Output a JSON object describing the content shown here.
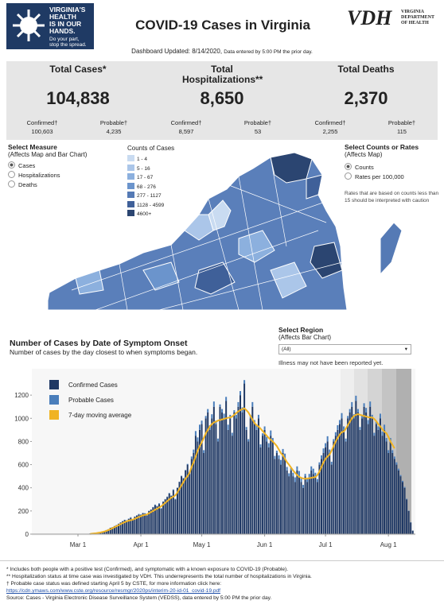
{
  "header": {
    "logo_title": [
      "VIRGINIA'S",
      "HEALTH",
      "IS IN OUR",
      "HANDS."
    ],
    "logo_tagline": [
      "Do your part,",
      "stop the spread."
    ],
    "title": "COVID-19 Cases in Virginia",
    "agency_short": "VDH",
    "agency_lines": [
      "VIRGINIA",
      "DEPARTMENT",
      "OF HEALTH"
    ]
  },
  "updated": {
    "label": "Dashboard Updated: 8/14/2020,",
    "note": "Data entered by 5:00 PM the prior day."
  },
  "kpis": [
    {
      "title": "Total Cases*",
      "value": "104,838",
      "sub": [
        {
          "label": "Confirmed†",
          "value": "100,603"
        },
        {
          "label": "Probable†",
          "value": "4,235"
        }
      ]
    },
    {
      "title": "Total Hospitalizations**",
      "value": "8,650",
      "sub": [
        {
          "label": "Confirmed†",
          "value": "8,597"
        },
        {
          "label": "Probable†",
          "value": "53"
        }
      ]
    },
    {
      "title": "Total Deaths",
      "value": "2,370",
      "sub": [
        {
          "label": "Confirmed†",
          "value": "2,255"
        },
        {
          "label": "Probable†",
          "value": "115"
        }
      ]
    }
  ],
  "measure": {
    "title": "Select Measure",
    "subtitle": "(Affects Map and Bar Chart)",
    "options": [
      "Cases",
      "Hospitalizations",
      "Deaths"
    ]
  },
  "map_legend": {
    "title": "Counts of Cases",
    "bins": [
      {
        "label": "1 - 4",
        "color": "#c9dbf1"
      },
      {
        "label": "5 - 16",
        "color": "#abc6e9"
      },
      {
        "label": "17 - 67",
        "color": "#8cb0de"
      },
      {
        "label": "68 - 276",
        "color": "#6b94cc"
      },
      {
        "label": "277 - 1127",
        "color": "#557ab5"
      },
      {
        "label": "1128 - 4599",
        "color": "#3f6099"
      },
      {
        "label": "4600+",
        "color": "#2b4571"
      }
    ]
  },
  "counts_rates": {
    "title": "Select Counts or Rates",
    "subtitle": "(Affects Map)",
    "options": [
      "Counts",
      "Rates per 100,000"
    ],
    "note": "Rates that are based on counts less than 15 should be interpreted with caution"
  },
  "region": {
    "title": "Select Region",
    "subtitle": "(Affects Bar Chart)",
    "selected": "(All)",
    "note": "Illness may not have been reported yet."
  },
  "chart_data": {
    "type": "bar",
    "stacked": true,
    "title": "Number of Cases by Date of Symptom Onset",
    "subtitle": "Number of cases by the day closest to when symptoms began.",
    "categories": [
      "Mar 1",
      null,
      null,
      null,
      null,
      null,
      null,
      null,
      null,
      null,
      null,
      null,
      null,
      null,
      null,
      null,
      null,
      null,
      null,
      null,
      null,
      null,
      null,
      null,
      null,
      null,
      null,
      null,
      null,
      null,
      null,
      "Apr 1",
      null,
      null,
      null,
      null,
      null,
      null,
      null,
      null,
      null,
      null,
      null,
      null,
      null,
      null,
      null,
      null,
      null,
      null,
      null,
      null,
      null,
      null,
      null,
      null,
      null,
      null,
      null,
      null,
      null,
      "May 1",
      null,
      null,
      null,
      null,
      null,
      null,
      null,
      null,
      null,
      null,
      null,
      null,
      null,
      null,
      null,
      null,
      null,
      null,
      null,
      null,
      null,
      null,
      null,
      null,
      null,
      null,
      null,
      null,
      null,
      null,
      "Jun 1",
      null,
      null,
      null,
      null,
      null,
      null,
      null,
      null,
      null,
      null,
      null,
      null,
      null,
      null,
      null,
      null,
      null,
      null,
      null,
      null,
      null,
      null,
      null,
      null,
      null,
      null,
      null,
      null,
      null,
      "Jul 1",
      null,
      null,
      null,
      null,
      null,
      null,
      null,
      null,
      null,
      null,
      null,
      null,
      null,
      null,
      null,
      null,
      null,
      null,
      null,
      null,
      null,
      null,
      null,
      null,
      null,
      null,
      null,
      null,
      null,
      null,
      "Aug 1",
      null,
      null,
      null,
      null,
      null,
      null,
      null,
      null,
      null,
      null,
      null,
      null
    ],
    "series": [
      {
        "name": "Confirmed Cases",
        "color": "#1f3864",
        "values": [
          0,
          0,
          1,
          1,
          2,
          3,
          5,
          6,
          8,
          10,
          14,
          18,
          22,
          28,
          35,
          42,
          55,
          60,
          70,
          78,
          90,
          100,
          110,
          120,
          115,
          130,
          140,
          125,
          150,
          160,
          170,
          165,
          180,
          175,
          160,
          200,
          210,
          230,
          250,
          240,
          260,
          220,
          280,
          300,
          320,
          350,
          330,
          380,
          300,
          400,
          450,
          500,
          480,
          550,
          600,
          520,
          650,
          700,
          850,
          800,
          900,
          950,
          700,
          1000,
          1050,
          900,
          1000,
          1100,
          950,
          800,
          1100,
          1050,
          1000,
          1150,
          900,
          1000,
          850,
          1050,
          1000,
          1100,
          1200,
          1050,
          1300,
          900,
          800,
          1000,
          1100,
          950,
          900,
          1000,
          750,
          850,
          900,
          800,
          750,
          850,
          800,
          650,
          700,
          650,
          600,
          700,
          650,
          550,
          500,
          550,
          500,
          450,
          550,
          500,
          450,
          400,
          500,
          450,
          480,
          550,
          520,
          500,
          450,
          600,
          650,
          700,
          750,
          800,
          700,
          600,
          800,
          850,
          900,
          950,
          1000,
          900,
          800,
          1000,
          1050,
          1100,
          1000,
          1150,
          1050,
          900,
          1000,
          1100,
          1050,
          950,
          1100,
          1000,
          850,
          950,
          900,
          1000,
          850,
          900,
          800,
          700,
          800,
          700,
          650,
          600,
          550,
          500,
          450,
          400,
          300,
          200,
          100,
          30
        ]
      },
      {
        "name": "Probable Cases",
        "color": "#4a7ebb",
        "values": [
          0,
          0,
          0,
          0,
          0,
          0,
          0,
          0,
          0,
          0,
          0,
          0,
          0,
          0,
          0,
          0,
          0,
          0,
          0,
          0,
          0,
          2,
          3,
          4,
          5,
          4,
          6,
          5,
          2,
          3,
          4,
          5,
          4,
          6,
          5,
          2,
          3,
          4,
          5,
          4,
          6,
          5,
          2,
          3,
          4,
          5,
          4,
          6,
          5,
          2,
          3,
          4,
          5,
          4,
          6,
          5,
          20,
          30,
          40,
          35,
          45,
          30,
          25,
          20,
          30,
          40,
          35,
          45,
          30,
          25,
          20,
          30,
          40,
          35,
          45,
          30,
          25,
          20,
          30,
          40,
          35,
          45,
          30,
          25,
          20,
          30,
          40,
          35,
          45,
          30,
          25,
          20,
          30,
          40,
          35,
          45,
          30,
          25,
          20,
          30,
          40,
          35,
          45,
          30,
          25,
          20,
          30,
          40,
          35,
          45,
          30,
          25,
          20,
          30,
          40,
          35,
          45,
          30,
          25,
          20,
          30,
          40,
          35,
          45,
          30,
          25,
          20,
          30,
          40,
          35,
          45,
          30,
          25,
          20,
          30,
          40,
          35,
          45,
          30,
          25,
          20,
          30,
          40,
          35,
          45,
          30,
          25,
          20,
          30,
          40,
          35,
          45,
          30,
          25,
          30,
          25,
          20,
          20,
          15,
          10,
          10,
          8,
          5,
          3,
          2,
          1
        ]
      },
      {
        "name": "7-day moving average",
        "color": "#f0b323",
        "kind": "line",
        "values": [
          null,
          null,
          null,
          null,
          null,
          null,
          2,
          4,
          6,
          8,
          11,
          14,
          18,
          22,
          28,
          35,
          43,
          51,
          60,
          68,
          77,
          86,
          95,
          103,
          110,
          116,
          120,
          125,
          132,
          140,
          147,
          155,
          162,
          166,
          170,
          180,
          190,
          200,
          210,
          220,
          230,
          240,
          255,
          270,
          285,
          300,
          315,
          323,
          335,
          360,
          390,
          420,
          450,
          480,
          500,
          530,
          580,
          620,
          670,
          720,
          760,
          793,
          830,
          870,
          900,
          930,
          950,
          965,
          971,
          980,
          985,
          990,
          995,
          1000,
          1005,
          1007,
          1015,
          1030,
          1045,
          1060,
          1070,
          1080,
          1086,
          1070,
          1050,
          1020,
          990,
          960,
          940,
          929,
          910,
          890,
          870,
          850,
          830,
          815,
          800,
          780,
          760,
          730,
          700,
          680,
          650,
          621,
          600,
          575,
          550,
          530,
          510,
          495,
          486,
          480,
          478,
          480,
          483,
          486,
          490,
          493,
          510,
          540,
          580,
          620,
          650,
          670,
          686,
          720,
          760,
          800,
          830,
          860,
          880,
          886,
          910,
          940,
          970,
          1000,
          1020,
          1030,
          1036,
          1030,
          1025,
          1020,
          1015,
          1010,
          1008,
          1007,
          995,
          975,
          950,
          930,
          905,
          885,
          871,
          840,
          800,
          770,
          740,
          null,
          null,
          null,
          null,
          null,
          null,
          null,
          null,
          null
        ]
      }
    ],
    "ylim": [
      0,
      1400
    ],
    "yticks": [
      0,
      200,
      400,
      600,
      800,
      1000,
      1200
    ],
    "grid": false
  },
  "footnotes": [
    "* Includes both people with a positive test (Confirmed), and symptomatic with a known exposure to COVID-19 (Probable).",
    "** Hospitalization status at time case was investigated by VDH. This underrepresents the total number of hospitalizations in Virginia.",
    "† Probable case status was defined starting April 5 by CSTE, for more information click here:",
    "https://cdn.ymaws.com/www.cste.org/resource/resmgr/2020ps/interim-20-id-01_covid-19.pdf",
    "Source:  Cases - Virginia Electronic Disease Surveillance System (VEDSS), data entered by 5:00 PM the prior day."
  ]
}
